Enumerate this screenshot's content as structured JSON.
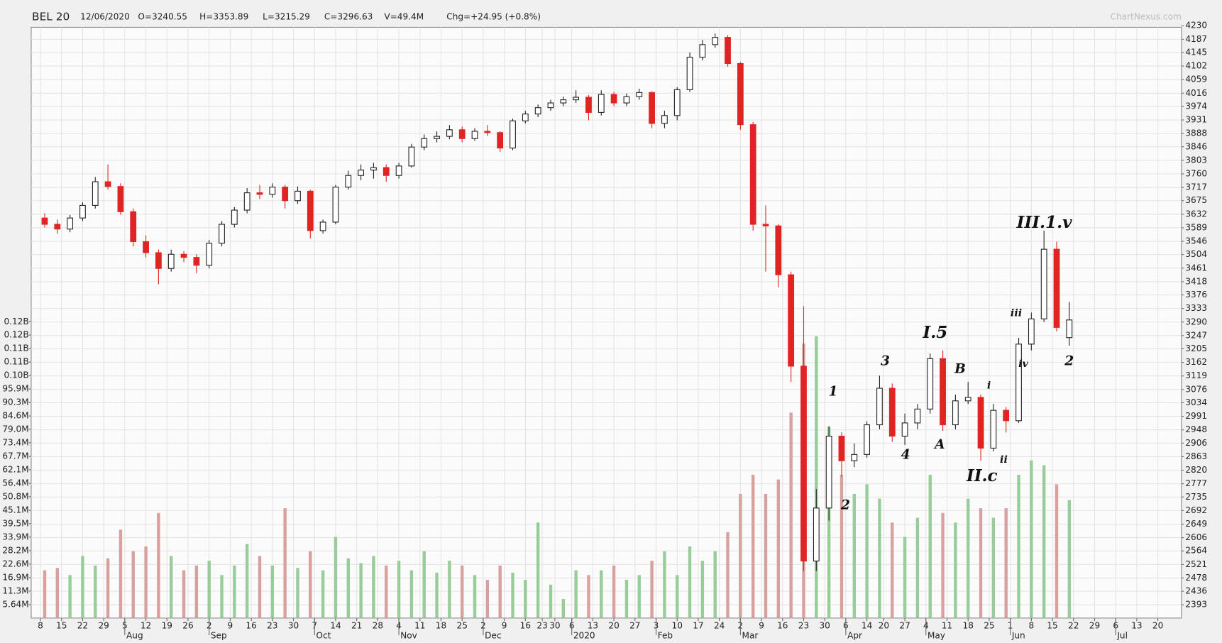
{
  "chart_data": {
    "type": "candlestick",
    "symbol": "BEL 20",
    "date": "12/06/2020",
    "ohlc_text": {
      "open": "O=3240.55",
      "high": "H=3353.89",
      "low": "L=3215.29",
      "close": "C=3296.63",
      "volume": "V=49.4M",
      "change": "Chg=+24.95 (+0.8%)"
    },
    "source": "ChartNexus.com",
    "x": [
      1,
      4,
      7,
      10,
      13,
      16,
      19,
      22,
      25,
      28,
      31,
      34,
      37,
      40,
      43,
      46,
      49,
      52,
      55,
      58,
      61,
      64,
      67,
      70,
      73,
      76,
      79,
      82,
      85,
      88,
      91,
      94,
      97,
      100,
      103,
      106,
      109,
      112,
      115,
      118,
      121,
      124,
      127,
      130,
      133,
      136,
      139,
      142,
      145,
      148,
      151,
      154,
      157,
      160,
      163,
      166,
      169,
      172,
      175,
      178,
      181,
      184,
      187,
      190,
      193,
      196,
      199,
      202,
      205,
      208,
      211,
      214,
      217,
      220,
      223,
      226,
      229,
      232,
      235,
      238,
      241,
      244
    ],
    "open": [
      3620,
      3600,
      3585,
      3620,
      3660,
      3735,
      3720,
      3640,
      3545,
      3510,
      3460,
      3505,
      3495,
      3470,
      3540,
      3600,
      3645,
      3700,
      3695,
      3718,
      3675,
      3705,
      3580,
      3607,
      3718,
      3755,
      3772,
      3780,
      3755,
      3785,
      3845,
      3872,
      3879,
      3900,
      3872,
      3895,
      3891,
      3842,
      3928,
      3950,
      3970,
      3985,
      3995,
      4003,
      3955,
      4012,
      3985,
      4005,
      4018,
      3920,
      3945,
      4027,
      4130,
      4170,
      4193,
      4110,
      3916,
      3600,
      3595,
      3440,
      3150,
      2532,
      2700,
      2928,
      2850,
      2870,
      2964,
      3080,
      2928,
      2970,
      3014,
      3174,
      2964,
      3040,
      3051,
      2890,
      3010,
      2977,
      3220,
      3300,
      3521,
      3240.55
    ],
    "high": [
      3635,
      3615,
      3630,
      3670,
      3750,
      3790,
      3730,
      3650,
      3565,
      3520,
      3520,
      3515,
      3505,
      3550,
      3610,
      3655,
      3715,
      3725,
      3730,
      3725,
      3720,
      3710,
      3615,
      3725,
      3770,
      3790,
      3795,
      3790,
      3795,
      3855,
      3885,
      3895,
      3915,
      3910,
      3905,
      3915,
      3895,
      3935,
      3960,
      3980,
      3995,
      4005,
      4025,
      4010,
      4025,
      4020,
      4015,
      4030,
      4022,
      3960,
      4035,
      4145,
      4185,
      4205,
      4200,
      4115,
      3925,
      3660,
      3600,
      3450,
      3340,
      2760,
      2960,
      2940,
      2905,
      2975,
      3120,
      3095,
      3000,
      3030,
      3190,
      3200,
      3060,
      3100,
      3060,
      3030,
      3020,
      3240,
      3320,
      3580,
      3545,
      3353.89
    ],
    "low": [
      3590,
      3570,
      3575,
      3610,
      3650,
      3710,
      3630,
      3530,
      3495,
      3410,
      3450,
      3480,
      3445,
      3460,
      3530,
      3590,
      3635,
      3680,
      3685,
      3650,
      3665,
      3555,
      3570,
      3600,
      3710,
      3740,
      3745,
      3735,
      3745,
      3780,
      3835,
      3860,
      3870,
      3860,
      3865,
      3880,
      3830,
      3835,
      3920,
      3940,
      3960,
      3975,
      3985,
      3930,
      3945,
      3975,
      3975,
      3995,
      3905,
      3905,
      3930,
      4020,
      4120,
      4160,
      4100,
      3900,
      3580,
      3450,
      3400,
      3100,
      2500,
      2500,
      2660,
      2800,
      2830,
      2860,
      2950,
      2910,
      2900,
      2950,
      3000,
      2945,
      2950,
      3030,
      2850,
      2880,
      2940,
      2970,
      3200,
      3290,
      3260,
      3215.29
    ],
    "close": [
      3600,
      3585,
      3620,
      3660,
      3735,
      3720,
      3640,
      3545,
      3510,
      3460,
      3505,
      3495,
      3470,
      3540,
      3600,
      3645,
      3700,
      3695,
      3718,
      3675,
      3705,
      3580,
      3607,
      3718,
      3755,
      3772,
      3780,
      3755,
      3785,
      3845,
      3872,
      3879,
      3900,
      3872,
      3895,
      3891,
      3842,
      3928,
      3950,
      3970,
      3985,
      3995,
      4003,
      3955,
      4012,
      3985,
      4005,
      4018,
      3920,
      3945,
      4027,
      4130,
      4170,
      4193,
      4110,
      3916,
      3600,
      3595,
      3440,
      3150,
      2532,
      2700,
      2928,
      2850,
      2870,
      2964,
      3080,
      2928,
      2970,
      3014,
      3174,
      2964,
      3040,
      3051,
      2890,
      3010,
      2977,
      3220,
      3300,
      3521,
      3273,
      3296.63
    ],
    "volume": [
      20000000,
      21000000,
      18000000,
      26000000,
      22000000,
      25000000,
      37000000,
      28000000,
      30000000,
      44000000,
      26000000,
      20000000,
      22000000,
      24000000,
      18000000,
      22000000,
      31000000,
      26000000,
      22000000,
      46000000,
      21000000,
      28000000,
      20000000,
      34000000,
      25000000,
      23000000,
      26000000,
      22000000,
      24000000,
      20000000,
      28000000,
      19000000,
      24000000,
      22000000,
      18000000,
      16000000,
      22000000,
      19000000,
      16000000,
      40000000,
      14000000,
      8000000,
      20000000,
      18000000,
      20000000,
      22000000,
      16000000,
      18000000,
      24000000,
      28000000,
      18000000,
      30000000,
      24000000,
      28000000,
      36000000,
      52000000,
      60000000,
      52000000,
      58000000,
      86000000,
      115000000,
      118000000,
      80000000,
      60000000,
      52000000,
      56000000,
      50000000,
      40000000,
      34000000,
      42000000,
      60000000,
      44000000,
      40000000,
      50000000,
      46000000,
      42000000,
      46000000,
      60000000,
      66000000,
      64000000,
      56000000,
      49400000
    ],
    "xlim": [
      -2.2,
      270.6
    ],
    "ylim": [
      2351,
      4225
    ],
    "yticks": [
      4230,
      4187,
      4145,
      4102,
      4059,
      4016,
      3974,
      3931,
      3888,
      3846,
      3803,
      3760,
      3717,
      3675,
      3632,
      3589,
      3546,
      3504,
      3461,
      3418,
      3376,
      3333,
      3290,
      3247,
      3205,
      3162,
      3119,
      3076,
      3034,
      2991,
      2948,
      2906,
      2863,
      2820,
      2777,
      2735,
      2692,
      2649,
      2606,
      2564,
      2521,
      2478,
      2436,
      2393
    ],
    "volume_ylim": [
      0,
      247400000
    ],
    "volume_ticks": [
      {
        "value": 5640000,
        "label": "5.64M"
      },
      {
        "value": 11300000,
        "label": "11.3M"
      },
      {
        "value": 16900000,
        "label": "16.9M"
      },
      {
        "value": 22600000,
        "label": "22.6M"
      },
      {
        "value": 28200000,
        "label": "28.2M"
      },
      {
        "value": 33900000,
        "label": "33.9M"
      },
      {
        "value": 39500000,
        "label": "39.5M"
      },
      {
        "value": 45100000,
        "label": "45.1M"
      },
      {
        "value": 50800000,
        "label": "50.8M"
      },
      {
        "value": 56400000,
        "label": "56.4M"
      },
      {
        "value": 62100000,
        "label": "62.1M"
      },
      {
        "value": 67700000,
        "label": "67.7M"
      },
      {
        "value": 73400000,
        "label": "73.4M"
      },
      {
        "value": 79000000,
        "label": "79.0M"
      },
      {
        "value": 84600000,
        "label": "84.6M"
      },
      {
        "value": 90300000,
        "label": "90.3M"
      },
      {
        "value": 95900000,
        "label": "95.9M"
      },
      {
        "value": 101600000,
        "label": "0.10B"
      },
      {
        "value": 107200000,
        "label": "0.11B"
      },
      {
        "value": 112900000,
        "label": "0.11B"
      },
      {
        "value": 118500000,
        "label": "0.12B"
      },
      {
        "value": 124100000,
        "label": "0.12B"
      }
    ],
    "xticks": [
      {
        "value": 0,
        "label": "8"
      },
      {
        "value": 5,
        "label": "15"
      },
      {
        "value": 10,
        "label": "22"
      },
      {
        "value": 15,
        "label": "29"
      },
      {
        "value": 20,
        "label": "5"
      },
      {
        "value": 25,
        "label": "12"
      },
      {
        "value": 30,
        "label": "19"
      },
      {
        "value": 35,
        "label": "26"
      },
      {
        "value": 40,
        "label": "2"
      },
      {
        "value": 45,
        "label": "9"
      },
      {
        "value": 50,
        "label": "16"
      },
      {
        "value": 55,
        "label": "23"
      },
      {
        "value": 60,
        "label": "30"
      },
      {
        "value": 65,
        "label": "7"
      },
      {
        "value": 70,
        "label": "14"
      },
      {
        "value": 75,
        "label": "21"
      },
      {
        "value": 80,
        "label": "28"
      },
      {
        "value": 85,
        "label": "4"
      },
      {
        "value": 90,
        "label": "11"
      },
      {
        "value": 95,
        "label": "18"
      },
      {
        "value": 100,
        "label": "25"
      },
      {
        "value": 105,
        "label": "2"
      },
      {
        "value": 110,
        "label": "9"
      },
      {
        "value": 115,
        "label": "16"
      },
      {
        "value": 119,
        "label": "23"
      },
      {
        "value": 122,
        "label": "30"
      },
      {
        "value": 126,
        "label": "6"
      },
      {
        "value": 131,
        "label": "13"
      },
      {
        "value": 136,
        "label": "20"
      },
      {
        "value": 141,
        "label": "27"
      },
      {
        "value": 146,
        "label": "3"
      },
      {
        "value": 151,
        "label": "10"
      },
      {
        "value": 156,
        "label": "17"
      },
      {
        "value": 161,
        "label": "24"
      },
      {
        "value": 166,
        "label": "2"
      },
      {
        "value": 171,
        "label": "9"
      },
      {
        "value": 176,
        "label": "16"
      },
      {
        "value": 181,
        "label": "23"
      },
      {
        "value": 186,
        "label": "30"
      },
      {
        "value": 191,
        "label": "6"
      },
      {
        "value": 196,
        "label": "14"
      },
      {
        "value": 200,
        "label": "20"
      },
      {
        "value": 205,
        "label": "27"
      },
      {
        "value": 210,
        "label": "4"
      },
      {
        "value": 215,
        "label": "11"
      },
      {
        "value": 220,
        "label": "18"
      },
      {
        "value": 225,
        "label": "25"
      },
      {
        "value": 230,
        "label": "1"
      },
      {
        "value": 235,
        "label": "8"
      },
      {
        "value": 240,
        "label": "15"
      },
      {
        "value": 245,
        "label": "22"
      },
      {
        "value": 250,
        "label": "29"
      },
      {
        "value": 255,
        "label": "6"
      },
      {
        "value": 260,
        "label": "13"
      },
      {
        "value": 265,
        "label": "20"
      }
    ],
    "months": [
      {
        "value": 20,
        "label": "Aug"
      },
      {
        "value": 40,
        "label": "Sep"
      },
      {
        "value": 65,
        "label": "Oct"
      },
      {
        "value": 85,
        "label": "Nov"
      },
      {
        "value": 105,
        "label": "Dec"
      },
      {
        "value": 126,
        "label": "2020"
      },
      {
        "value": 146,
        "label": "Feb"
      },
      {
        "value": 166,
        "label": "Mar"
      },
      {
        "value": 191,
        "label": "Apr"
      },
      {
        "value": 210,
        "label": "May"
      },
      {
        "value": 230,
        "label": "Jun"
      },
      {
        "value": 255,
        "label": "Jul"
      }
    ],
    "annotations": [
      "1",
      "2",
      "3",
      "4",
      "I.5",
      "A",
      "B",
      "II.c",
      "i",
      "ii",
      "iii",
      "iv",
      "III.1.v",
      "2"
    ],
    "up_color": "#ffffff",
    "down_color": "#e02424",
    "up_volume_color": "#98cc98",
    "down_volume_color": "#d9a0a0",
    "grid": true
  }
}
